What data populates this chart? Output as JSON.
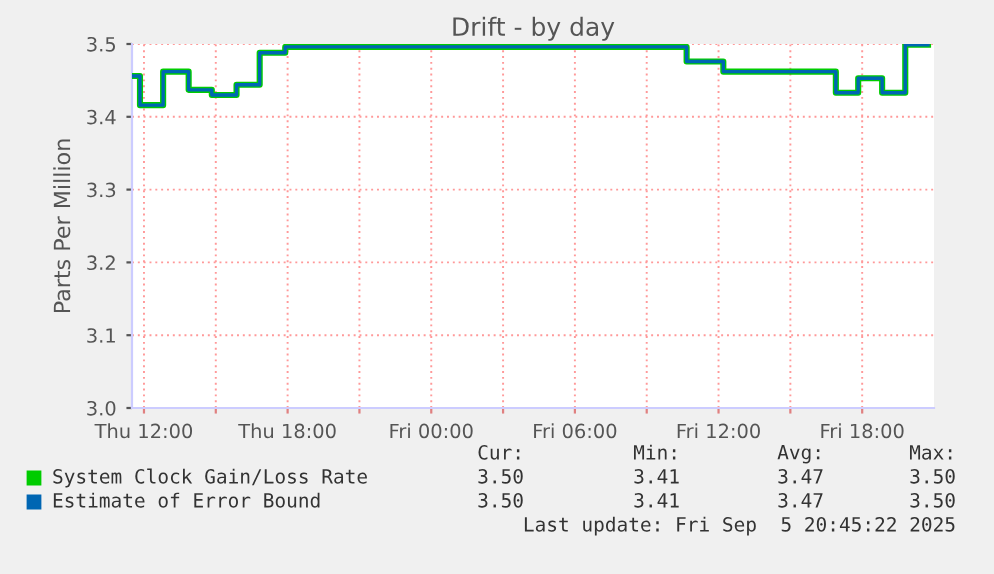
{
  "chart_data": {
    "type": "step",
    "title": "Drift - by day",
    "ylabel": "Parts Per Million",
    "x": [
      "2025-09-04T11:30",
      "2025-09-04T11:50",
      "2025-09-04T12:48",
      "2025-09-04T13:52",
      "2025-09-04T14:50",
      "2025-09-04T15:52",
      "2025-09-04T16:50",
      "2025-09-04T17:54",
      "2025-09-05T10:40",
      "2025-09-05T12:12",
      "2025-09-05T16:54",
      "2025-09-05T17:50",
      "2025-09-05T18:50",
      "2025-09-05T19:48",
      "2025-09-05T20:45"
    ],
    "series": [
      {
        "name": "System Clock Gain/Loss Rate",
        "color": "#00cc00",
        "values": [
          3.456,
          3.416,
          3.462,
          3.437,
          3.43,
          3.444,
          3.488,
          3.496,
          3.476,
          3.462,
          3.433,
          3.453,
          3.433,
          3.499,
          3.499
        ]
      },
      {
        "name": "Estimate of Error Bound",
        "color": "#0066b3",
        "values": [
          3.456,
          3.416,
          3.462,
          3.437,
          3.43,
          3.444,
          3.488,
          3.496,
          3.476,
          3.462,
          3.433,
          3.453,
          3.433,
          3.499,
          3.499
        ]
      }
    ],
    "xlim": [
      "2025-09-04T11:30",
      "2025-09-05T21:00"
    ],
    "xticks": [
      {
        "value": "2025-09-04T12:00",
        "label": "Thu 12:00"
      },
      {
        "value": "2025-09-04T15:00",
        "label": null
      },
      {
        "value": "2025-09-04T18:00",
        "label": "Thu 18:00"
      },
      {
        "value": "2025-09-04T21:00",
        "label": null
      },
      {
        "value": "2025-09-05T00:00",
        "label": "Fri 00:00"
      },
      {
        "value": "2025-09-05T03:00",
        "label": null
      },
      {
        "value": "2025-09-05T06:00",
        "label": "Fri 06:00"
      },
      {
        "value": "2025-09-05T09:00",
        "label": null
      },
      {
        "value": "2025-09-05T12:00",
        "label": "Fri 12:00"
      },
      {
        "value": "2025-09-05T15:00",
        "label": null
      },
      {
        "value": "2025-09-05T18:00",
        "label": "Fri 18:00"
      }
    ],
    "ylim": [
      3.0,
      3.5
    ],
    "yticks": [
      {
        "value": 3.0,
        "label": "3.0"
      },
      {
        "value": 3.1,
        "label": "3.1"
      },
      {
        "value": 3.2,
        "label": "3.2"
      },
      {
        "value": 3.3,
        "label": "3.3"
      },
      {
        "value": 3.4,
        "label": "3.4"
      },
      {
        "value": 3.5,
        "label": "3.5"
      }
    ],
    "grid": true,
    "legend": "bottom",
    "annotations": [
      "Cur:",
      "Min:",
      "Avg:",
      "Max:",
      "3.50",
      "3.41",
      "3.47",
      "3.50",
      "3.50",
      "3.41",
      "3.47",
      "3.50",
      "Last update: Fri Sep  5 20:45:22 2025"
    ]
  }
}
